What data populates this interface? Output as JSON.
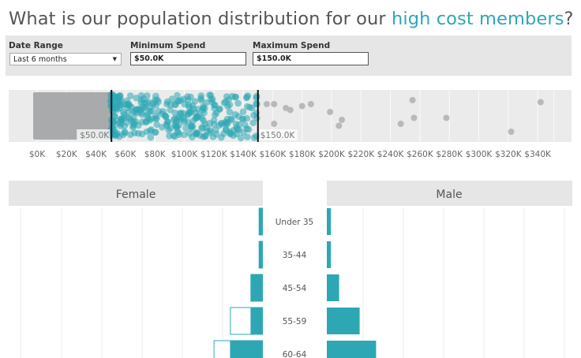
{
  "title": {
    "prefix": "What is our population distribution for our ",
    "highlight": "high cost members",
    "suffix": "?"
  },
  "filters": {
    "date_range": {
      "label": "Date Range",
      "value": "Last 6 months"
    },
    "min_spend": {
      "label": "Minimum Spend",
      "value": "$50.0K"
    },
    "max_spend": {
      "label": "Maximum Spend",
      "value": "$150.0K"
    }
  },
  "colors": {
    "accent": "#2ea7b5",
    "grey_band": "#a9aaab",
    "panel": "#e6e6e6"
  },
  "chart_data": [
    {
      "type": "scatter",
      "xlim": [
        0,
        350
      ],
      "x_ticks": [
        "$0K",
        "$20K",
        "$40K",
        "$60K",
        "$80K",
        "$100K",
        "$120K",
        "$140K",
        "$160K",
        "$180K",
        "$200K",
        "$220K",
        "$240K",
        "$260K",
        "$280K",
        "$300K",
        "$320K",
        "$340K"
      ],
      "markers": {
        "min_label": "$50.0K",
        "max_label": "$150.0K"
      },
      "outliers": [
        [
          156,
          0.2
        ],
        [
          161,
          0.2
        ],
        [
          169,
          0.3
        ],
        [
          172,
          0.35
        ],
        [
          180,
          0.25
        ],
        [
          186,
          0.2
        ],
        [
          199,
          0.4
        ],
        [
          207,
          0.6
        ],
        [
          205,
          0.75
        ],
        [
          161,
          0.7
        ],
        [
          255,
          0.1
        ],
        [
          256,
          0.55
        ],
        [
          247,
          0.7
        ],
        [
          278,
          0.55
        ],
        [
          342,
          0.15
        ],
        [
          322,
          0.9
        ]
      ]
    },
    {
      "type": "bar",
      "categories": [
        "Under 35",
        "35-44",
        "45-54",
        "55-59",
        "60-64"
      ],
      "female": {
        "header": "Female",
        "high_cost": [
          1,
          1,
          3,
          3,
          8
        ],
        "total": [
          1,
          1,
          3,
          8,
          12
        ]
      },
      "male": {
        "header": "Male",
        "high_cost": [
          1,
          1,
          3,
          8,
          12
        ]
      }
    }
  ]
}
